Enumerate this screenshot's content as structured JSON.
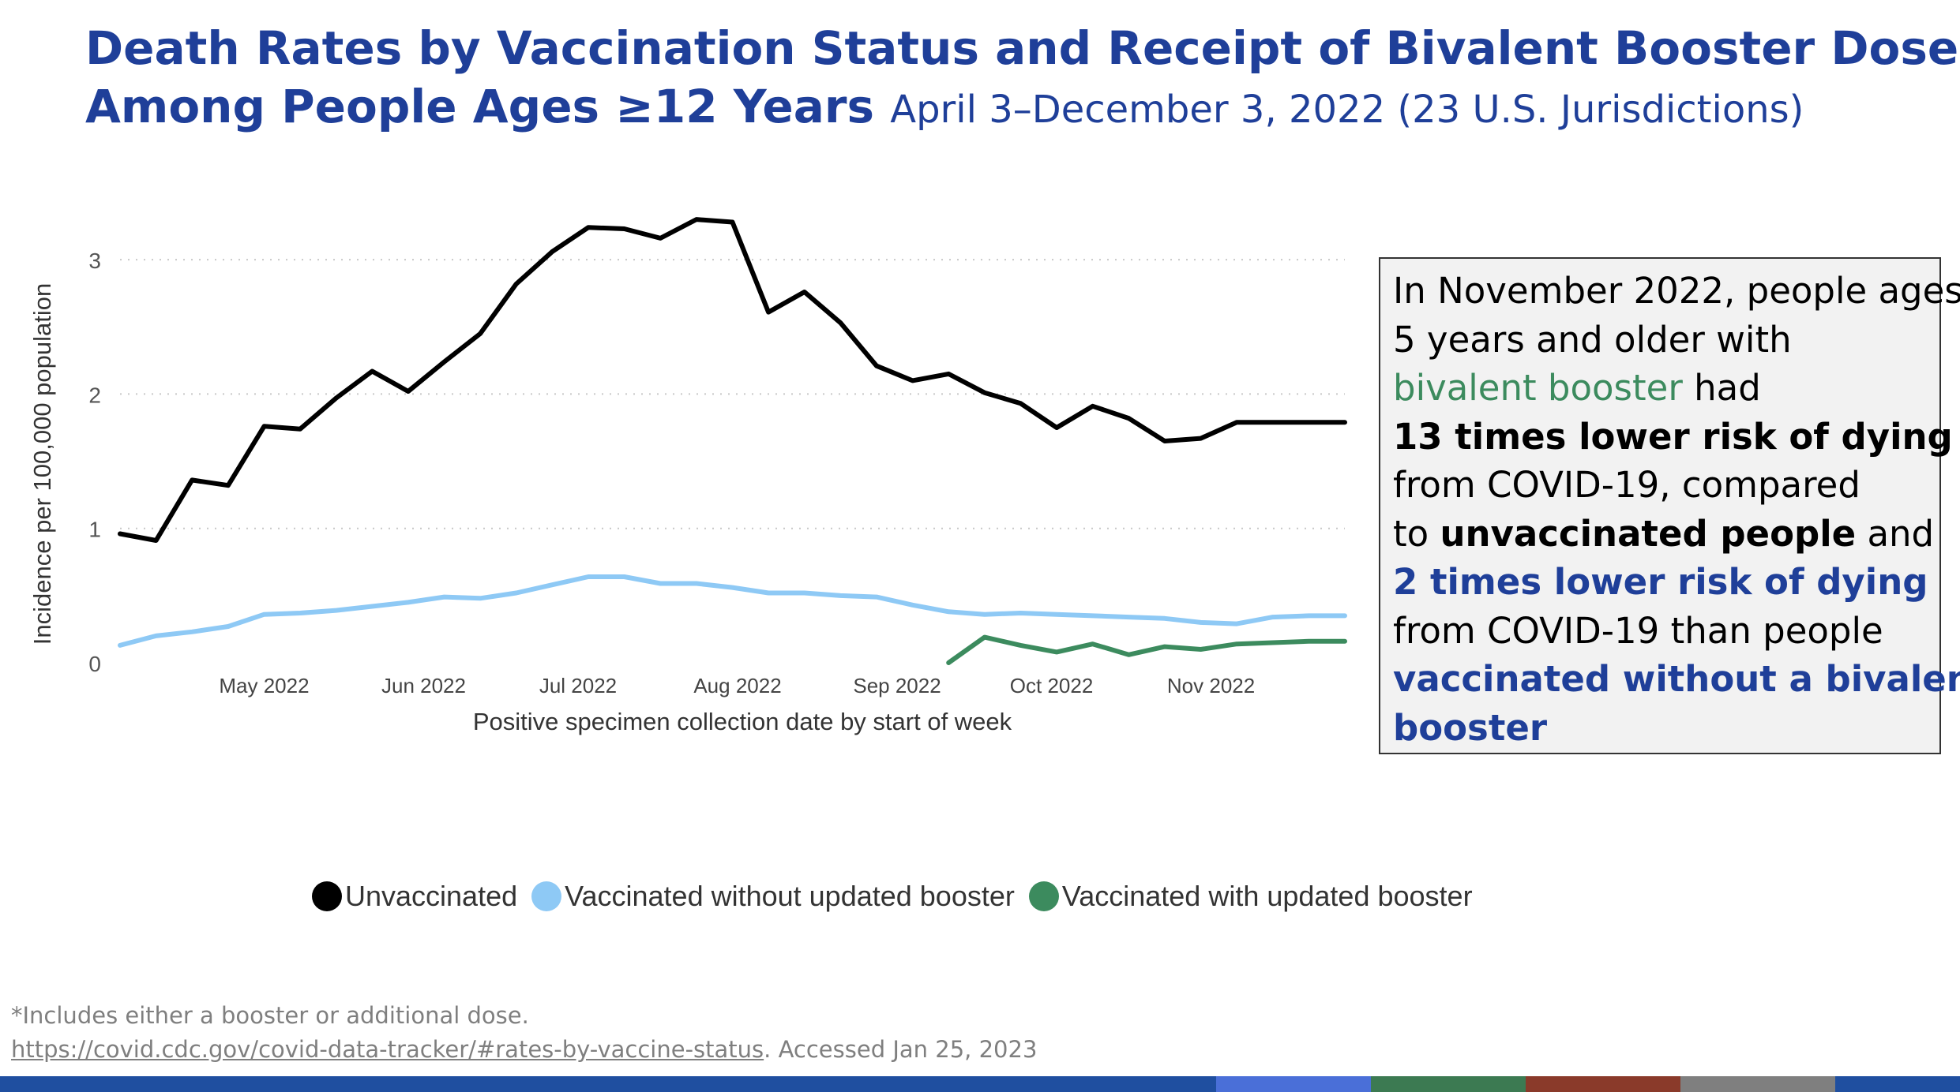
{
  "title": {
    "line1": "Death Rates by Vaccination Status and Receipt of Bivalent Booster Doses",
    "line2": "Among People Ages ≥12 Years",
    "subtitle": "April 3–December 3, 2022 (23 U.S. Jurisdictions)"
  },
  "chart_data": {
    "type": "line",
    "xlabel": "Positive specimen collection date by start of week",
    "ylabel": "Incidence per 100,000 population",
    "ylim": [
      0,
      3.5
    ],
    "yticks": [
      0,
      1,
      2,
      3
    ],
    "grid": "horizontal dotted",
    "x_tick_labels": [
      "May 2022",
      "Jun 2022",
      "Jul 2022",
      "Aug 2022",
      "Sep 2022",
      "Oct 2022",
      "Nov 2022"
    ],
    "x_tick_dates": [
      "2022-05-01",
      "2022-06-01",
      "2022-07-01",
      "2022-08-01",
      "2022-09-01",
      "2022-10-01",
      "2022-11-01"
    ],
    "x_range": [
      "2022-04-03",
      "2022-11-27"
    ],
    "x": [
      "2022-04-03",
      "2022-04-10",
      "2022-04-17",
      "2022-04-24",
      "2022-05-01",
      "2022-05-08",
      "2022-05-15",
      "2022-05-22",
      "2022-05-29",
      "2022-06-05",
      "2022-06-12",
      "2022-06-19",
      "2022-06-26",
      "2022-07-03",
      "2022-07-10",
      "2022-07-17",
      "2022-07-24",
      "2022-07-31",
      "2022-08-07",
      "2022-08-14",
      "2022-08-21",
      "2022-08-28",
      "2022-09-04",
      "2022-09-11",
      "2022-09-18",
      "2022-09-25",
      "2022-10-02",
      "2022-10-09",
      "2022-10-16",
      "2022-10-23",
      "2022-10-30",
      "2022-11-06",
      "2022-11-13",
      "2022-11-20",
      "2022-11-27"
    ],
    "series": [
      {
        "name": "Unvaccinated",
        "color": "#000000",
        "values": [
          0.96,
          0.91,
          1.36,
          1.32,
          1.76,
          1.74,
          1.97,
          2.17,
          2.02,
          2.24,
          2.45,
          2.82,
          3.06,
          3.24,
          3.23,
          3.16,
          3.3,
          3.28,
          2.61,
          2.76,
          2.53,
          2.21,
          2.1,
          2.15,
          2.01,
          1.93,
          1.75,
          1.91,
          1.82,
          1.65,
          1.67,
          1.79,
          1.79,
          1.79,
          1.79
        ]
      },
      {
        "name": "Vaccinated without updated booster",
        "color": "#8ec9f5",
        "values": [
          0.13,
          0.2,
          0.23,
          0.27,
          0.36,
          0.37,
          0.39,
          0.42,
          0.45,
          0.49,
          0.48,
          0.52,
          0.58,
          0.64,
          0.64,
          0.59,
          0.59,
          0.56,
          0.52,
          0.52,
          0.5,
          0.49,
          0.43,
          0.38,
          0.36,
          0.37,
          0.36,
          0.35,
          0.34,
          0.33,
          0.3,
          0.29,
          0.34,
          0.35,
          0.35
        ]
      },
      {
        "name": "Vaccinated with updated booster",
        "color": "#3c8b5e",
        "values": [
          null,
          null,
          null,
          null,
          null,
          null,
          null,
          null,
          null,
          null,
          null,
          null,
          null,
          null,
          null,
          null,
          null,
          null,
          null,
          null,
          null,
          null,
          null,
          0.0,
          0.19,
          0.13,
          0.08,
          0.14,
          0.06,
          0.12,
          0.1,
          0.14,
          0.15,
          0.16,
          0.16
        ]
      }
    ]
  },
  "callout": {
    "l1": "In November 2022, people ages",
    "l2": "5 years and older with",
    "l3a": "bivalent booster",
    "l3b": " had",
    "l4": "13 times lower risk of dying",
    "l5": "from COVID-19, compared",
    "l6a": "to ",
    "l6b": "unvaccinated people",
    "l6c": " and",
    "l7": "2 times lower risk of dying",
    "l8": "from COVID-19 than people",
    "l9": "vaccinated without a bivalent",
    "l10": "booster"
  },
  "legend": [
    {
      "label": "Unvaccinated",
      "color": "#000000"
    },
    {
      "label": "Vaccinated without updated booster",
      "color": "#8ec9f5"
    },
    {
      "label": "Vaccinated with updated booster",
      "color": "#3c8b5e"
    }
  ],
  "footer": {
    "note": "*Includes either a booster or additional dose.",
    "link": "https://covid.cdc.gov/covid-data-tracker/#rates-by-vaccine-status",
    "accessed": ". Accessed Jan 25, 2023"
  },
  "bottom_bar_colors": [
    "#1f4fa0",
    "#4a6fd8",
    "#3c7a52",
    "#8a3a2a",
    "#7f7f7f",
    "#1f4fa0"
  ]
}
